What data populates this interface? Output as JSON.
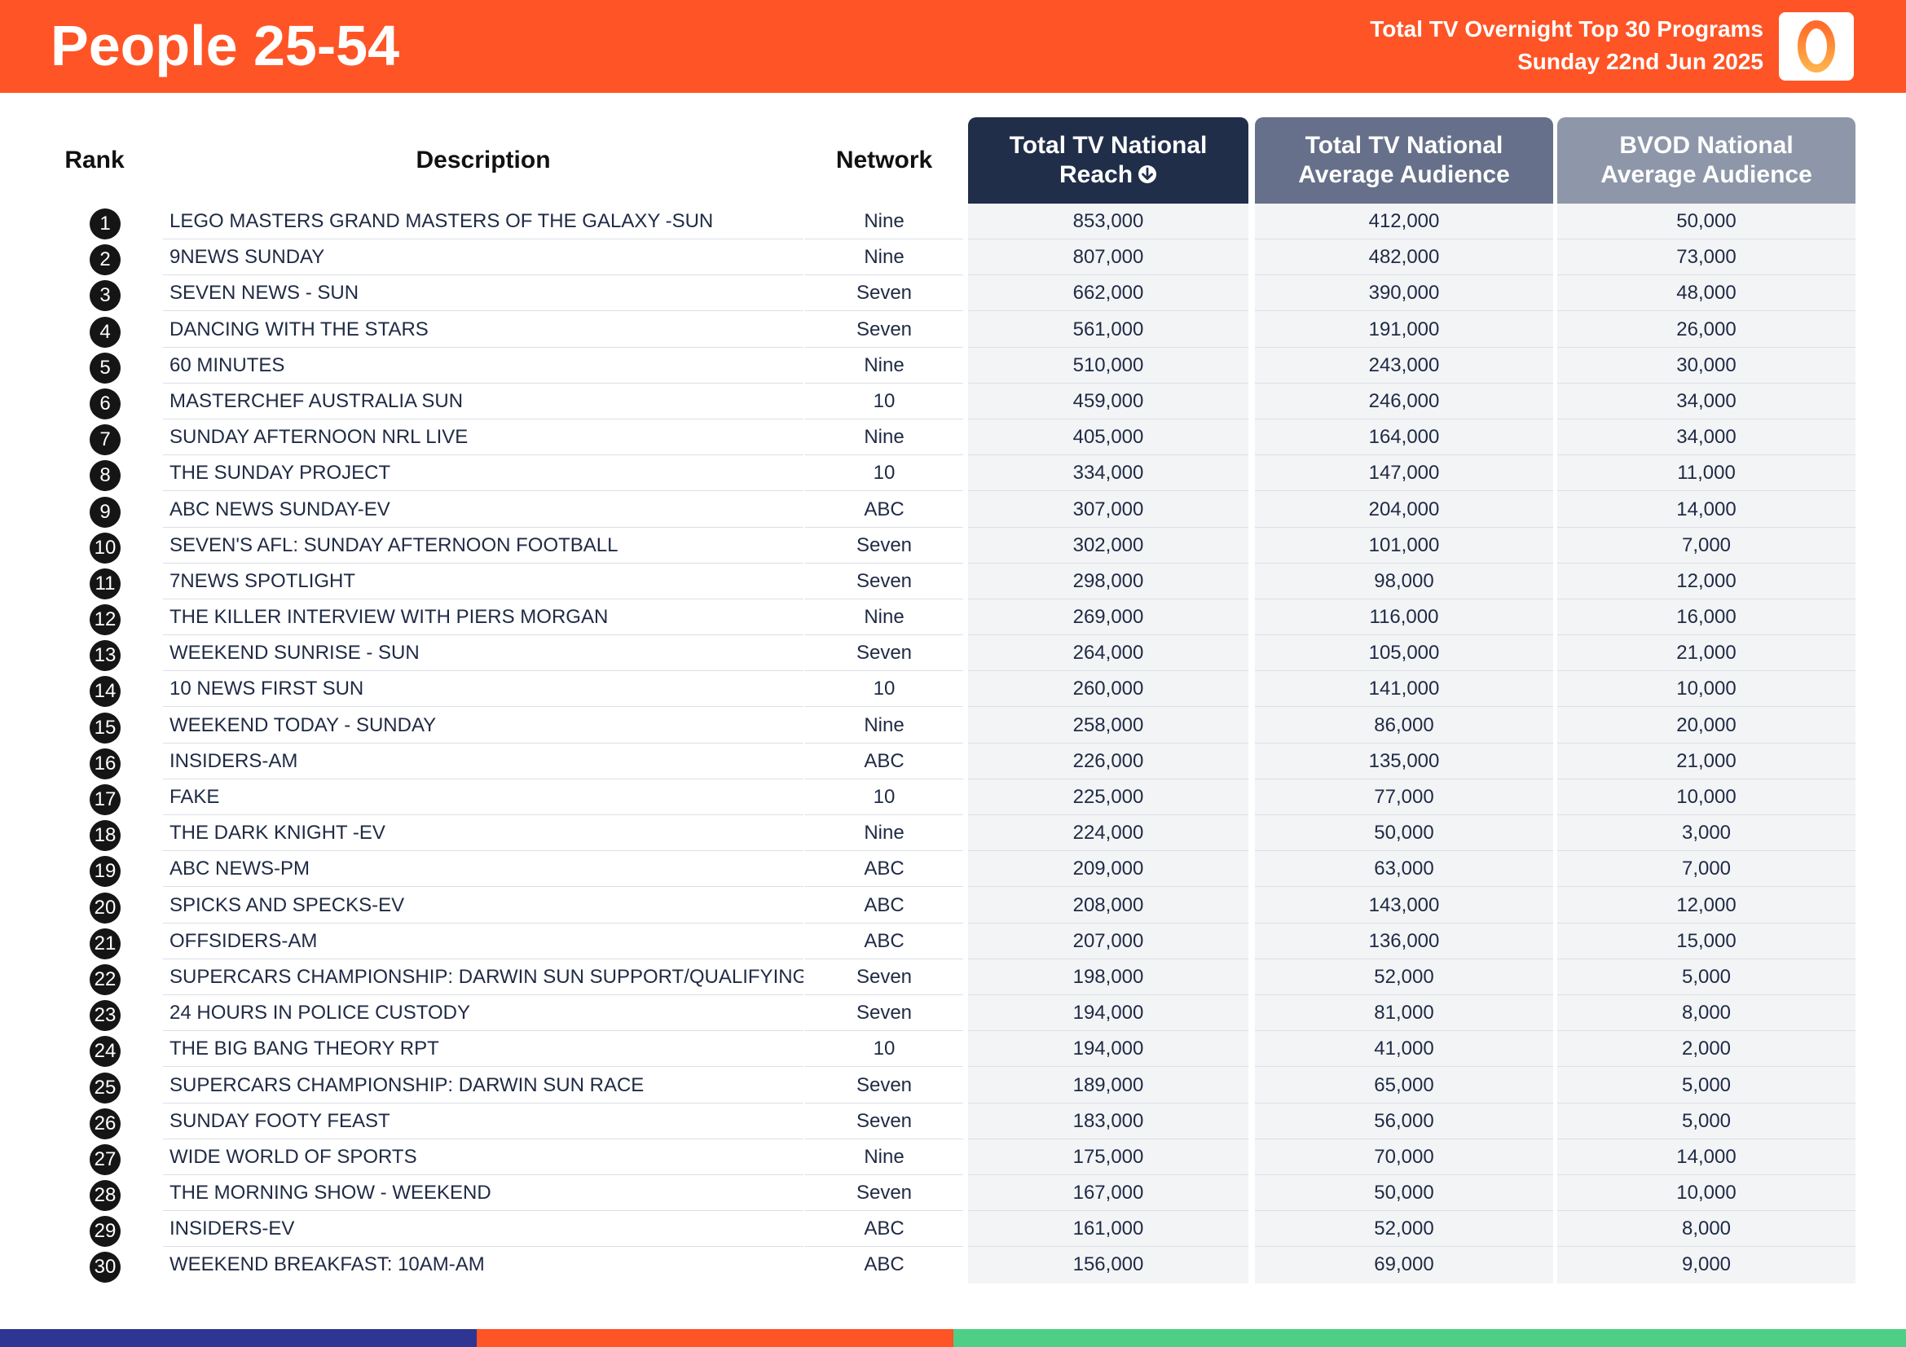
{
  "header": {
    "title": "People 25-54",
    "subtitle_line1": "Total TV Overnight Top 30 Programs",
    "subtitle_line2": "Sunday 22nd Jun 2025",
    "logo_icon": "oztam-logo-icon",
    "logo_text": "0"
  },
  "columns": {
    "rank": "Rank",
    "description": "Description",
    "network": "Network",
    "reach_line1": "Total TV National",
    "reach_line2": "Reach",
    "avg_line1": "Total TV National",
    "avg_line2": "Average Audience",
    "bvod_line1": "BVOD National",
    "bvod_line2": "Average Audience",
    "sort_icon": "sort-descending-icon"
  },
  "colors": {
    "brand_orange": "#ff5426",
    "reach_header": "#202e4a",
    "avg_header": "#66708a",
    "bvod_header": "#8e97a9",
    "footer_blue": "#2f3593",
    "footer_orange": "#ff5426",
    "footer_green": "#4fcf86"
  },
  "rows": [
    {
      "rank": "1",
      "description": "LEGO MASTERS GRAND MASTERS OF THE GALAXY -SUN",
      "network": "Nine",
      "reach": "853,000",
      "avg": "412,000",
      "bvod": "50,000"
    },
    {
      "rank": "2",
      "description": "9NEWS SUNDAY",
      "network": "Nine",
      "reach": "807,000",
      "avg": "482,000",
      "bvod": "73,000"
    },
    {
      "rank": "3",
      "description": "SEVEN NEWS - SUN",
      "network": "Seven",
      "reach": "662,000",
      "avg": "390,000",
      "bvod": "48,000"
    },
    {
      "rank": "4",
      "description": "DANCING WITH THE STARS",
      "network": "Seven",
      "reach": "561,000",
      "avg": "191,000",
      "bvod": "26,000"
    },
    {
      "rank": "5",
      "description": "60 MINUTES",
      "network": "Nine",
      "reach": "510,000",
      "avg": "243,000",
      "bvod": "30,000"
    },
    {
      "rank": "6",
      "description": "MASTERCHEF AUSTRALIA SUN",
      "network": "10",
      "reach": "459,000",
      "avg": "246,000",
      "bvod": "34,000"
    },
    {
      "rank": "7",
      "description": "SUNDAY AFTERNOON NRL LIVE",
      "network": "Nine",
      "reach": "405,000",
      "avg": "164,000",
      "bvod": "34,000"
    },
    {
      "rank": "8",
      "description": "THE SUNDAY PROJECT",
      "network": "10",
      "reach": "334,000",
      "avg": "147,000",
      "bvod": "11,000"
    },
    {
      "rank": "9",
      "description": "ABC NEWS SUNDAY-EV",
      "network": "ABC",
      "reach": "307,000",
      "avg": "204,000",
      "bvod": "14,000"
    },
    {
      "rank": "10",
      "description": "SEVEN'S AFL: SUNDAY AFTERNOON FOOTBALL",
      "network": "Seven",
      "reach": "302,000",
      "avg": "101,000",
      "bvod": "7,000"
    },
    {
      "rank": "11",
      "description": "7NEWS SPOTLIGHT",
      "network": "Seven",
      "reach": "298,000",
      "avg": "98,000",
      "bvod": "12,000"
    },
    {
      "rank": "12",
      "description": "THE KILLER INTERVIEW WITH PIERS MORGAN",
      "network": "Nine",
      "reach": "269,000",
      "avg": "116,000",
      "bvod": "16,000"
    },
    {
      "rank": "13",
      "description": "WEEKEND SUNRISE - SUN",
      "network": "Seven",
      "reach": "264,000",
      "avg": "105,000",
      "bvod": "21,000"
    },
    {
      "rank": "14",
      "description": "10 NEWS FIRST SUN",
      "network": "10",
      "reach": "260,000",
      "avg": "141,000",
      "bvod": "10,000"
    },
    {
      "rank": "15",
      "description": "WEEKEND TODAY - SUNDAY",
      "network": "Nine",
      "reach": "258,000",
      "avg": "86,000",
      "bvod": "20,000"
    },
    {
      "rank": "16",
      "description": "INSIDERS-AM",
      "network": "ABC",
      "reach": "226,000",
      "avg": "135,000",
      "bvod": "21,000"
    },
    {
      "rank": "17",
      "description": "FAKE",
      "network": "10",
      "reach": "225,000",
      "avg": "77,000",
      "bvod": "10,000"
    },
    {
      "rank": "18",
      "description": "THE DARK KNIGHT -EV",
      "network": "Nine",
      "reach": "224,000",
      "avg": "50,000",
      "bvod": "3,000"
    },
    {
      "rank": "19",
      "description": "ABC NEWS-PM",
      "network": "ABC",
      "reach": "209,000",
      "avg": "63,000",
      "bvod": "7,000"
    },
    {
      "rank": "20",
      "description": "SPICKS AND SPECKS-EV",
      "network": "ABC",
      "reach": "208,000",
      "avg": "143,000",
      "bvod": "12,000"
    },
    {
      "rank": "21",
      "description": "OFFSIDERS-AM",
      "network": "ABC",
      "reach": "207,000",
      "avg": "136,000",
      "bvod": "15,000"
    },
    {
      "rank": "22",
      "description": "SUPERCARS CHAMPIONSHIP: DARWIN SUN SUPPORT/QUALIFYING",
      "network": "Seven",
      "reach": "198,000",
      "avg": "52,000",
      "bvod": "5,000"
    },
    {
      "rank": "23",
      "description": "24 HOURS IN POLICE CUSTODY",
      "network": "Seven",
      "reach": "194,000",
      "avg": "81,000",
      "bvod": "8,000"
    },
    {
      "rank": "24",
      "description": "THE BIG BANG THEORY RPT",
      "network": "10",
      "reach": "194,000",
      "avg": "41,000",
      "bvod": "2,000"
    },
    {
      "rank": "25",
      "description": "SUPERCARS CHAMPIONSHIP: DARWIN SUN RACE",
      "network": "Seven",
      "reach": "189,000",
      "avg": "65,000",
      "bvod": "5,000"
    },
    {
      "rank": "26",
      "description": "SUNDAY FOOTY FEAST",
      "network": "Seven",
      "reach": "183,000",
      "avg": "56,000",
      "bvod": "5,000"
    },
    {
      "rank": "27",
      "description": "WIDE WORLD OF SPORTS",
      "network": "Nine",
      "reach": "175,000",
      "avg": "70,000",
      "bvod": "14,000"
    },
    {
      "rank": "28",
      "description": "THE MORNING SHOW - WEEKEND",
      "network": "Seven",
      "reach": "167,000",
      "avg": "50,000",
      "bvod": "10,000"
    },
    {
      "rank": "29",
      "description": "INSIDERS-EV",
      "network": "ABC",
      "reach": "161,000",
      "avg": "52,000",
      "bvod": "8,000"
    },
    {
      "rank": "30",
      "description": "WEEKEND BREAKFAST: 10AM-AM",
      "network": "ABC",
      "reach": "156,000",
      "avg": "69,000",
      "bvod": "9,000"
    }
  ]
}
